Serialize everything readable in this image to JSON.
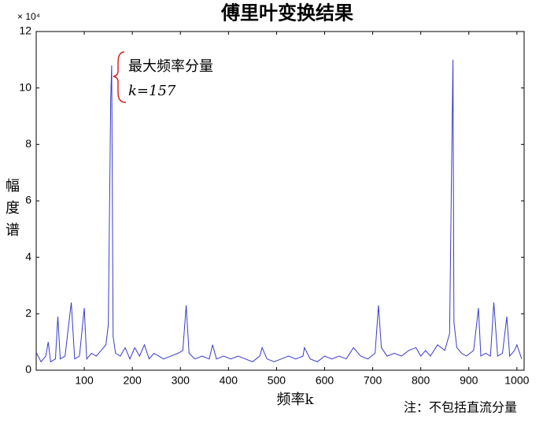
{
  "chart_data": {
    "type": "line",
    "title": "傅里叶变换结果",
    "y_multiplier": "× 10⁴",
    "ylabel": "幅度谱",
    "xlabel": "频率k",
    "note": "注：不包括直流分量",
    "annotations": [
      "最大频率分量",
      "k=157"
    ],
    "xlim": [
      0,
      1015
    ],
    "xticks": [
      100,
      200,
      300,
      400,
      500,
      600,
      700,
      800,
      900,
      1000
    ],
    "ylim": [
      0,
      12
    ],
    "yticks": [
      0,
      2,
      4,
      6,
      8,
      10,
      12
    ],
    "series": [
      {
        "color": "#3a3acc",
        "x": [
          1,
          10,
          20,
          25,
          30,
          40,
          45,
          50,
          60,
          73,
          80,
          90,
          100,
          105,
          115,
          125,
          135,
          145,
          150,
          155,
          157,
          160,
          165,
          175,
          185,
          195,
          205,
          215,
          225,
          235,
          245,
          255,
          265,
          280,
          295,
          305,
          312,
          318,
          330,
          345,
          360,
          367,
          375,
          390,
          405,
          420,
          435,
          450,
          465,
          470,
          480,
          495,
          510,
          525,
          540,
          555,
          558,
          570,
          585,
          600,
          615,
          630,
          645,
          660,
          675,
          690,
          705,
          712,
          718,
          730,
          745,
          760,
          775,
          790,
          800,
          810,
          820,
          835,
          850,
          860,
          863,
          867,
          869,
          875,
          885,
          895,
          910,
          920,
          925,
          935,
          945,
          952,
          960,
          970,
          979,
          985,
          995,
          1000,
          1010
        ],
        "values": [
          0.6,
          0.3,
          0.5,
          1.0,
          0.3,
          0.4,
          1.9,
          0.4,
          0.5,
          2.4,
          0.4,
          0.5,
          2.2,
          0.4,
          0.6,
          0.5,
          0.7,
          0.9,
          1.6,
          9.6,
          10.8,
          1.2,
          0.6,
          0.5,
          0.8,
          0.4,
          0.8,
          0.5,
          0.9,
          0.4,
          0.6,
          0.5,
          0.4,
          0.5,
          0.6,
          0.7,
          2.3,
          0.6,
          0.4,
          0.5,
          0.4,
          0.9,
          0.4,
          0.5,
          0.4,
          0.5,
          0.4,
          0.3,
          0.5,
          0.8,
          0.4,
          0.3,
          0.4,
          0.5,
          0.4,
          0.5,
          0.8,
          0.4,
          0.3,
          0.5,
          0.4,
          0.5,
          0.4,
          0.8,
          0.5,
          0.4,
          0.6,
          2.3,
          0.8,
          0.5,
          0.6,
          0.5,
          0.7,
          0.8,
          0.5,
          0.7,
          0.5,
          0.9,
          0.7,
          1.3,
          5.6,
          11.0,
          1.7,
          0.8,
          0.6,
          0.5,
          0.7,
          2.2,
          0.5,
          0.6,
          0.5,
          2.4,
          0.5,
          0.6,
          1.9,
          0.5,
          0.7,
          0.9,
          0.4
        ]
      }
    ]
  }
}
